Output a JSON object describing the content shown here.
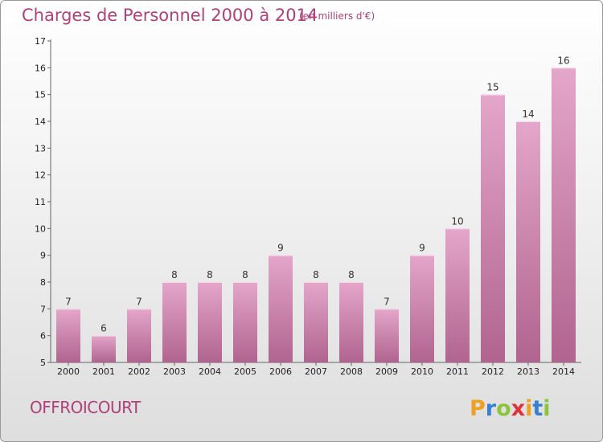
{
  "header": {
    "title": "Charges de Personnel 2000 à 2014",
    "subtitle": "(en milliers d'€)"
  },
  "footer": {
    "commune": "OFFROICOURT",
    "brand": "Proxiti"
  },
  "colors": {
    "title": "#b0407a",
    "bar_light": "#e4a6ca",
    "bar_dark": "#b0648f",
    "brand_p": "#f0a020",
    "brand_r": "#3a7fd0",
    "brand_o": "#8cc43a",
    "brand_x": "#e0303a"
  },
  "chart_data": {
    "type": "bar",
    "title": "Charges de Personnel 2000 à 2014",
    "subtitle": "(en milliers d'€)",
    "xlabel": "",
    "ylabel": "",
    "categories": [
      "2000",
      "2001",
      "2002",
      "2003",
      "2004",
      "2005",
      "2006",
      "2007",
      "2008",
      "2009",
      "2010",
      "2011",
      "2012",
      "2013",
      "2014"
    ],
    "values": [
      7,
      6,
      7,
      8,
      8,
      8,
      9,
      8,
      8,
      7,
      9,
      10,
      15,
      14,
      16
    ],
    "ylim": [
      5,
      17
    ],
    "yticks": [
      5,
      6,
      7,
      8,
      9,
      10,
      11,
      12,
      13,
      14,
      15,
      16,
      17
    ],
    "grid": false,
    "data_labels": true
  }
}
